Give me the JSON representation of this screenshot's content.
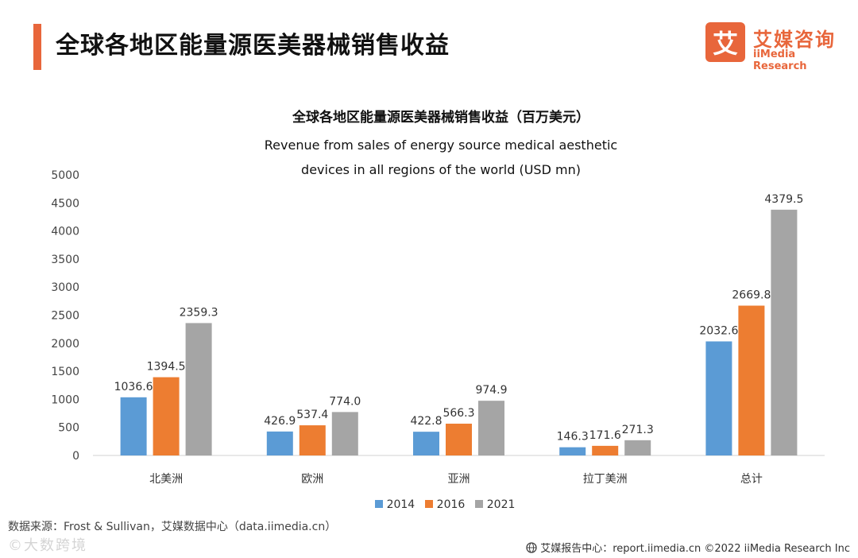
{
  "header": {
    "title": "全球各地区能量源医美器械销售收益",
    "accent_color": "#e8663b"
  },
  "logo": {
    "mark": "艾",
    "name_cn": "艾媒咨询",
    "name_en": "iiMedia Research",
    "brand_color": "#e8663b",
    "icon": "iimedia-logo-icon"
  },
  "chart_data": {
    "type": "bar",
    "title": "全球各地区能量源医美器械销售收益（百万美元）",
    "subtitle": [
      "Revenue from sales of energy source medical aesthetic",
      "devices in all regions of the world (USD mn)"
    ],
    "categories": [
      "北美洲",
      "欧洲",
      "亚洲",
      "拉丁美洲",
      "总计"
    ],
    "series": [
      {
        "name": "2014",
        "color": "#5b9bd5",
        "values": [
          1036.6,
          426.9,
          422.8,
          146.3,
          2032.6
        ]
      },
      {
        "name": "2016",
        "color": "#ed7d31",
        "values": [
          1394.5,
          537.4,
          566.3,
          171.6,
          2669.8
        ]
      },
      {
        "name": "2021",
        "color": "#a5a5a5",
        "values": [
          2359.3,
          774.0,
          974.9,
          271.3,
          4379.5
        ]
      }
    ],
    "yticks": [
      "0",
      "500",
      "1000",
      "1500",
      "2000",
      "2500",
      "3000",
      "3500",
      "4000",
      "4500",
      "5000"
    ],
    "ylim": [
      0,
      5000
    ],
    "xlabel": "",
    "ylabel": "",
    "grid": false,
    "legend_position": "bottom",
    "value_labels": true
  },
  "footer": {
    "source": "数据来源：Frost & Sullivan，艾媒数据中心（data.iimedia.cn）",
    "report": "艾媒报告中心：report.iimedia.cn  ©2022  iiMedia Research  Inc",
    "watermark": "©大数跨境",
    "globe_icon": "globe-icon"
  }
}
